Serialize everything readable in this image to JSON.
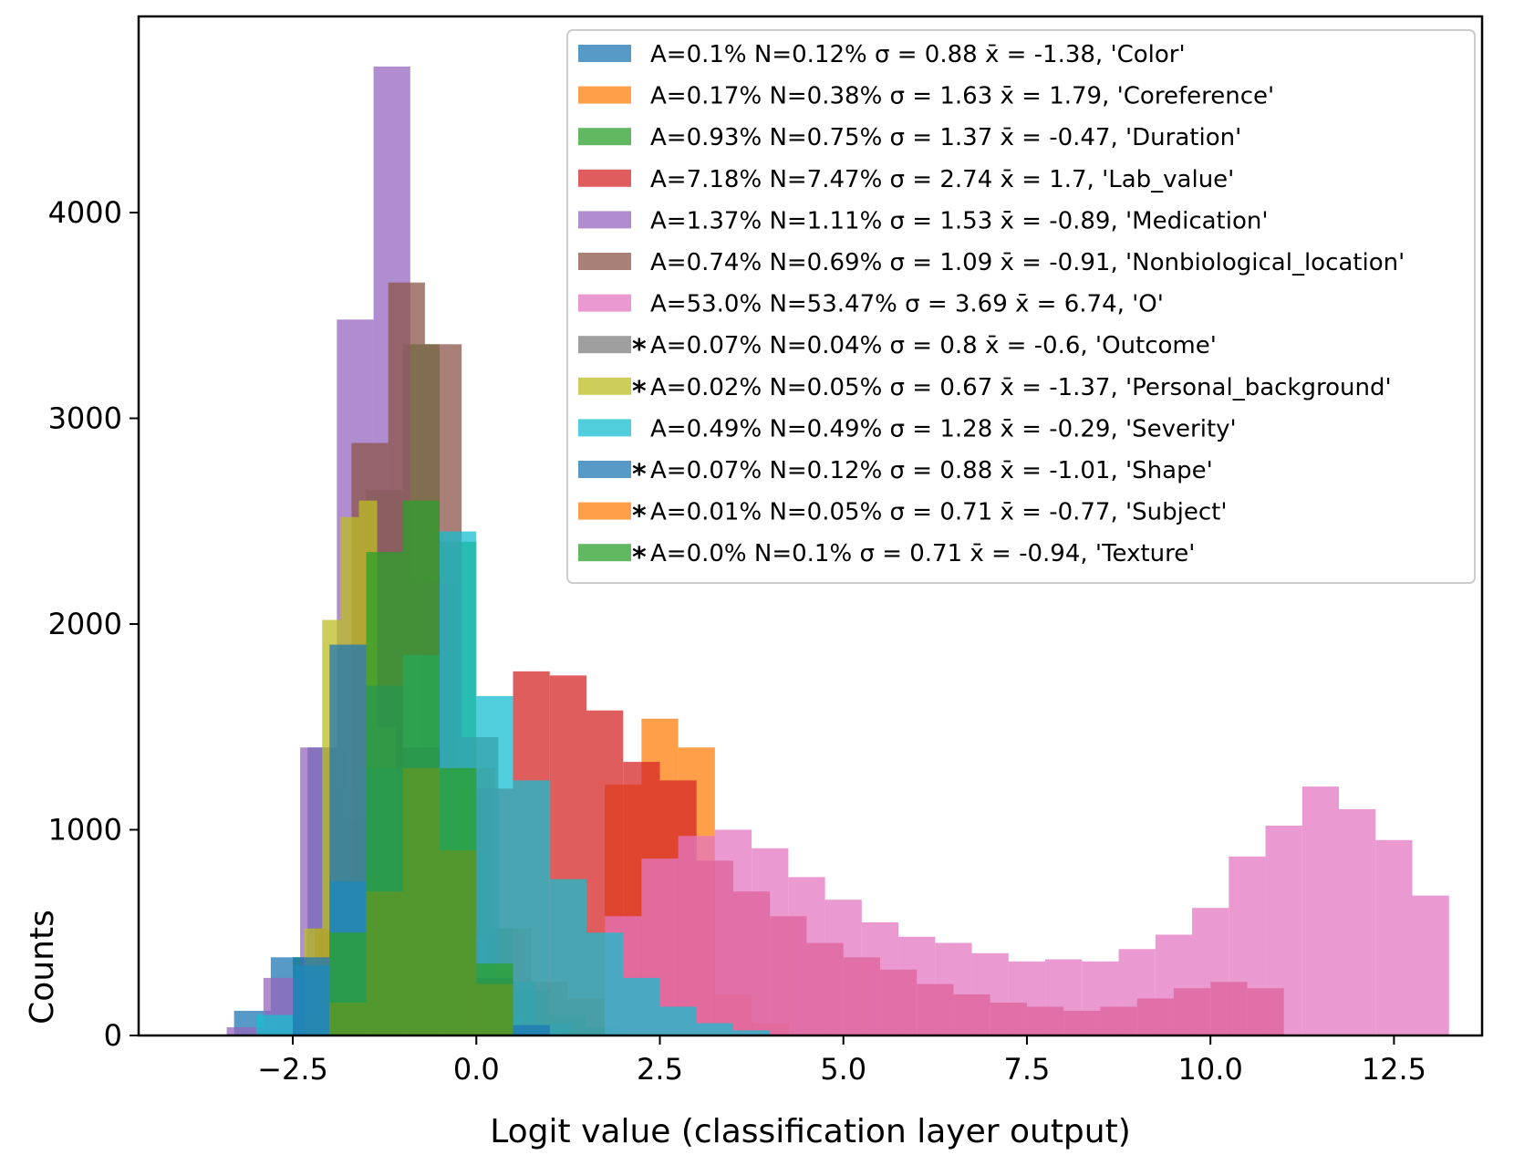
{
  "chart_data": {
    "type": "bar",
    "subtype": "overlapping-histogram",
    "title": "",
    "xlabel": "Logit value (classification layer output)",
    "ylabel": "Counts",
    "xlim": [
      -4.6,
      13.7
    ],
    "ylim": [
      0,
      5000
    ],
    "xticks": [
      -2.5,
      0.0,
      2.5,
      5.0,
      7.5,
      10.0,
      12.5
    ],
    "xtick_labels": [
      "−2.5",
      "0.0",
      "2.5",
      "5.0",
      "7.5",
      "10.0",
      "12.5"
    ],
    "yticks": [
      0,
      1000,
      2000,
      3000,
      4000
    ],
    "ytick_labels": [
      "0",
      "1000",
      "2000",
      "3000",
      "4000"
    ],
    "bar_opacity": 0.75,
    "legend_position": "top-right",
    "grid": false,
    "series": [
      {
        "name": "A=0.1% N=0.12% σ = 0.88 x̄ = -1.38, 'Color'",
        "label": {
          "starred": false,
          "a": "A=0.1%",
          "n": "N=0.12%",
          "sigma": "σ = 0.88",
          "mean": "x̄ = -1.38,",
          "tag": "'Color'"
        },
        "color": "#1f77b4",
        "bin_edges": [
          -3.3,
          -2.8,
          -2.3,
          -1.8,
          -1.3,
          -0.8,
          -0.3,
          0.2,
          0.7,
          1.2
        ],
        "counts": [
          120,
          380,
          1400,
          1050,
          560,
          290,
          140,
          55,
          20
        ]
      },
      {
        "name": "A=0.17% N=0.38% σ = 1.63 x̄ = 1.79, 'Coreference'",
        "label": {
          "starred": false,
          "a": "A=0.17%",
          "n": "N=0.38%",
          "sigma": "σ = 1.63",
          "mean": "x̄ = 1.79,",
          "tag": "'Coreference'"
        },
        "color": "#ff7f0e",
        "bin_edges": [
          -2.25,
          -1.75,
          -1.25,
          -0.75,
          -0.25,
          0.25,
          0.75,
          1.25,
          1.75,
          2.25,
          2.75,
          3.25,
          3.75,
          4.25
        ],
        "counts": [
          60,
          250,
          850,
          2200,
          1300,
          520,
          260,
          180,
          1220,
          1540,
          1400,
          200,
          60
        ]
      },
      {
        "name": "A=0.93% N=0.75% σ = 1.37 x̄ = -0.47, 'Duration'",
        "label": {
          "starred": false,
          "a": "A=0.93%",
          "n": "N=0.75%",
          "sigma": "σ = 1.37",
          "mean": "x̄ = -0.47,",
          "tag": "'Duration'"
        },
        "color": "#2ca02c",
        "bin_edges": [
          -2.5,
          -2.0,
          -1.5,
          -1.0,
          -0.5,
          0.0,
          0.5,
          1.0,
          1.5,
          2.0
        ],
        "counts": [
          380,
          1200,
          2650,
          3360,
          2400,
          520,
          220,
          100,
          40
        ]
      },
      {
        "name": "A=7.18% N=7.47% σ = 2.74 x̄ = 1.7, 'Lab_value'",
        "label": {
          "starred": false,
          "a": "A=7.18%",
          "n": "N=7.47%",
          "sigma": "σ = 2.74",
          "mean": "x̄ = 1.7,",
          "tag": "'Lab_value'"
        },
        "color": "#d62728",
        "bin_edges": [
          -0.5,
          0.0,
          0.5,
          1.0,
          1.5,
          2.0,
          2.5,
          3.0,
          3.5,
          4.0,
          4.5,
          5.0,
          5.5,
          6.0,
          6.5,
          7.0,
          7.5,
          8.0,
          8.5,
          9.0,
          9.5,
          10.0,
          10.5,
          11.0
        ],
        "counts": [
          350,
          1200,
          1770,
          1750,
          1580,
          1330,
          1240,
          850,
          700,
          580,
          450,
          380,
          320,
          250,
          200,
          160,
          140,
          120,
          140,
          180,
          230,
          260,
          230
        ]
      },
      {
        "name": "A=1.37% N=1.11% σ = 1.53 x̄ = -0.89, 'Medication'",
        "label": {
          "starred": false,
          "a": "A=1.37%",
          "n": "N=1.11%",
          "sigma": "σ = 1.53",
          "mean": "x̄ = -0.89,",
          "tag": "'Medication'"
        },
        "color": "#9467bd",
        "bin_edges": [
          -3.4,
          -2.9,
          -2.4,
          -1.9,
          -1.4,
          -0.9,
          -0.4,
          0.1,
          0.6,
          1.1
        ],
        "counts": [
          40,
          280,
          1400,
          3480,
          4710,
          2200,
          480,
          90,
          20
        ]
      },
      {
        "name": "A=0.74% N=0.69% σ = 1.09 x̄ = -0.91, 'Nonbiological_location'",
        "label": {
          "starred": false,
          "a": "A=0.74%",
          "n": "N=0.69%",
          "sigma": "σ = 1.09",
          "mean": "x̄ = -0.91,",
          "tag": "'Nonbiological_location'"
        },
        "color": "#8c564b",
        "bin_edges": [
          -2.2,
          -1.7,
          -1.2,
          -0.7,
          -0.2,
          0.3,
          0.8,
          1.3
        ],
        "counts": [
          520,
          2880,
          3660,
          3360,
          1450,
          260,
          60
        ]
      },
      {
        "name": "A=53.0% N=53.47% σ = 3.69 x̄ = 6.74, 'O'",
        "label": {
          "starred": false,
          "a": "A=53.0%",
          "n": "N=53.47%",
          "sigma": "σ = 3.69",
          "mean": "x̄ = 6.74,",
          "tag": "'O'"
        },
        "color": "#e377c2",
        "bin_edges": [
          1.75,
          2.25,
          2.75,
          3.25,
          3.75,
          4.25,
          4.75,
          5.25,
          5.75,
          6.25,
          6.75,
          7.25,
          7.75,
          8.25,
          8.75,
          9.25,
          9.75,
          10.25,
          10.75,
          11.25,
          11.75,
          12.25,
          12.75,
          13.25
        ],
        "counts": [
          580,
          860,
          970,
          1000,
          910,
          770,
          660,
          550,
          480,
          450,
          400,
          360,
          370,
          360,
          420,
          490,
          620,
          870,
          1020,
          1210,
          1100,
          950,
          680,
          200
        ]
      },
      {
        "name": "A=0.07% N=0.04% σ = 0.8 x̄ = -0.6, 'Outcome'",
        "label": {
          "starred": true,
          "a": "A=0.07%",
          "n": "N=0.04%",
          "sigma": "σ = 0.8",
          "mean": "x̄ = -0.6,",
          "tag": "'Outcome'"
        },
        "color": "#7f7f7f",
        "bin_edges": [
          -1.7,
          -1.2,
          -0.7,
          -0.2,
          0.3,
          0.8
        ],
        "counts": [
          25,
          45,
          35,
          15,
          5
        ]
      },
      {
        "name": "A=0.02% N=0.05% σ = 0.67 x̄ = -1.37, 'Personal_background'",
        "label": {
          "starred": true,
          "a": "A=0.02%",
          "n": "N=0.05%",
          "sigma": "σ = 0.67",
          "mean": "x̄ = -1.37,",
          "tag": "'Personal_background'"
        },
        "color": "#bcbd22",
        "bin_edges": [
          -2.35,
          -2.1,
          -1.85,
          -1.6,
          -1.35,
          -1.1,
          -0.85,
          -0.6
        ],
        "counts": [
          520,
          2020,
          2520,
          2600,
          1500,
          600,
          150
        ]
      },
      {
        "name": "A=0.49% N=0.49% σ = 1.28 x̄ = -0.29, 'Severity'",
        "label": {
          "starred": false,
          "a": "A=0.49%",
          "n": "N=0.49%",
          "sigma": "σ = 1.28",
          "mean": "x̄ = -0.29,",
          "tag": "'Severity'"
        },
        "color": "#17becf",
        "bin_edges": [
          -3.0,
          -2.5,
          -2.0,
          -1.5,
          -1.0,
          -0.5,
          0.0,
          0.5,
          1.0,
          1.5,
          2.0,
          2.5,
          3.0,
          3.5,
          4.0
        ],
        "counts": [
          100,
          340,
          750,
          1300,
          1850,
          2450,
          1650,
          1240,
          760,
          500,
          280,
          140,
          60,
          25
        ]
      },
      {
        "name": "A=0.07% N=0.12% σ = 0.88 x̄ = -1.01, 'Shape'",
        "label": {
          "starred": true,
          "a": "A=0.07%",
          "n": "N=0.12%",
          "sigma": "σ = 0.88",
          "mean": "x̄ = -1.01,",
          "tag": "'Shape'"
        },
        "color": "#1f77b4",
        "bin_edges": [
          -2.5,
          -2.0,
          -1.5,
          -1.0,
          -0.5,
          0.0,
          0.5,
          1.0
        ],
        "counts": [
          380,
          1900,
          1700,
          1400,
          900,
          280,
          50
        ]
      },
      {
        "name": "A=0.01% N=0.05% σ = 0.71 x̄ = -0.77, 'Subject'",
        "label": {
          "starred": true,
          "a": "A=0.01%",
          "n": "N=0.05%",
          "sigma": "σ = 0.71",
          "mean": "x̄ = -0.77,",
          "tag": "'Subject'"
        },
        "color": "#ff7f0e",
        "bin_edges": [
          -2.0,
          -1.5,
          -1.0,
          -0.5,
          0.0,
          0.5
        ],
        "counts": [
          160,
          700,
          1300,
          900,
          250
        ]
      },
      {
        "name": "A=0.0% N=0.1% σ = 0.71 x̄ = -0.94, 'Texture'",
        "label": {
          "starred": true,
          "a": "A=0.0%",
          "n": "N=0.1%",
          "sigma": "σ = 0.71",
          "mean": "x̄ = -0.94,",
          "tag": "'Texture'"
        },
        "color": "#2ca02c",
        "bin_edges": [
          -2.0,
          -1.5,
          -1.0,
          -0.5,
          0.0,
          0.5
        ],
        "counts": [
          500,
          2350,
          2600,
          1300,
          350
        ]
      }
    ]
  }
}
